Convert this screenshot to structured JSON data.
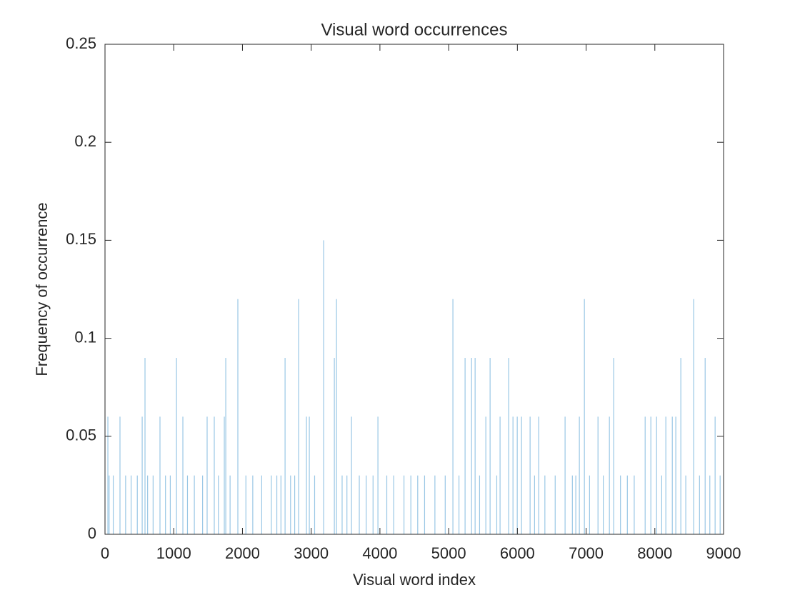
{
  "chart_data": {
    "type": "bar",
    "title": "Visual word occurrences",
    "x_label": "Visual word index",
    "y_label": "Frequency of occurrence",
    "color": "#0072bd",
    "x": [
      42,
      60,
      120,
      218,
      300,
      380,
      470,
      541,
      582,
      620,
      700,
      800,
      880,
      950,
      1040,
      1133,
      1200,
      1300,
      1420,
      1486,
      1590,
      1650,
      1736,
      1757,
      1820,
      1933,
      2050,
      2150,
      2280,
      2420,
      2500,
      2560,
      2620,
      2700,
      2760,
      2817,
      2931,
      2973,
      3050,
      3181,
      3337,
      3368,
      3450,
      3520,
      3586,
      3700,
      3800,
      3900,
      3971,
      4100,
      4200,
      4350,
      4450,
      4550,
      4650,
      4800,
      4950,
      5062,
      5150,
      5239,
      5333,
      5385,
      5450,
      5541,
      5603,
      5700,
      5748,
      5873,
      5936,
      5998,
      6060,
      6185,
      6250,
      6310,
      6400,
      6550,
      6694,
      6800,
      6850,
      6902,
      6975,
      7050,
      7173,
      7250,
      7339,
      7401,
      7500,
      7600,
      7700,
      7859,
      7942,
      8025,
      8100,
      8160,
      8254,
      8305,
      8378,
      8450,
      8565,
      8650,
      8732,
      8800,
      8877,
      8950
    ],
    "values": [
      0.06,
      0.03,
      0.03,
      0.06,
      0.03,
      0.03,
      0.03,
      0.06,
      0.09,
      0.03,
      0.03,
      0.06,
      0.03,
      0.03,
      0.09,
      0.06,
      0.03,
      0.03,
      0.03,
      0.06,
      0.06,
      0.03,
      0.06,
      0.09,
      0.03,
      0.12,
      0.03,
      0.03,
      0.03,
      0.03,
      0.03,
      0.03,
      0.09,
      0.03,
      0.03,
      0.12,
      0.06,
      0.06,
      0.03,
      0.15,
      0.09,
      0.12,
      0.03,
      0.03,
      0.06,
      0.03,
      0.03,
      0.03,
      0.06,
      0.03,
      0.03,
      0.03,
      0.03,
      0.03,
      0.03,
      0.03,
      0.03,
      0.12,
      0.03,
      0.09,
      0.09,
      0.09,
      0.03,
      0.06,
      0.09,
      0.03,
      0.06,
      0.09,
      0.06,
      0.06,
      0.06,
      0.06,
      0.03,
      0.06,
      0.03,
      0.03,
      0.06,
      0.03,
      0.03,
      0.06,
      0.12,
      0.03,
      0.06,
      0.03,
      0.06,
      0.09,
      0.03,
      0.03,
      0.03,
      0.06,
      0.06,
      0.06,
      0.03,
      0.06,
      0.06,
      0.06,
      0.09,
      0.03,
      0.12,
      0.03,
      0.09,
      0.03,
      0.06,
      0.03
    ],
    "xlim": [
      0,
      9000
    ],
    "xticks": [
      0,
      1000,
      2000,
      3000,
      4000,
      5000,
      6000,
      7000,
      8000,
      9000
    ],
    "ylim": [
      0,
      0.25
    ],
    "yticks": [
      0,
      0.05,
      0.1,
      0.15,
      0.2,
      0.25
    ]
  }
}
